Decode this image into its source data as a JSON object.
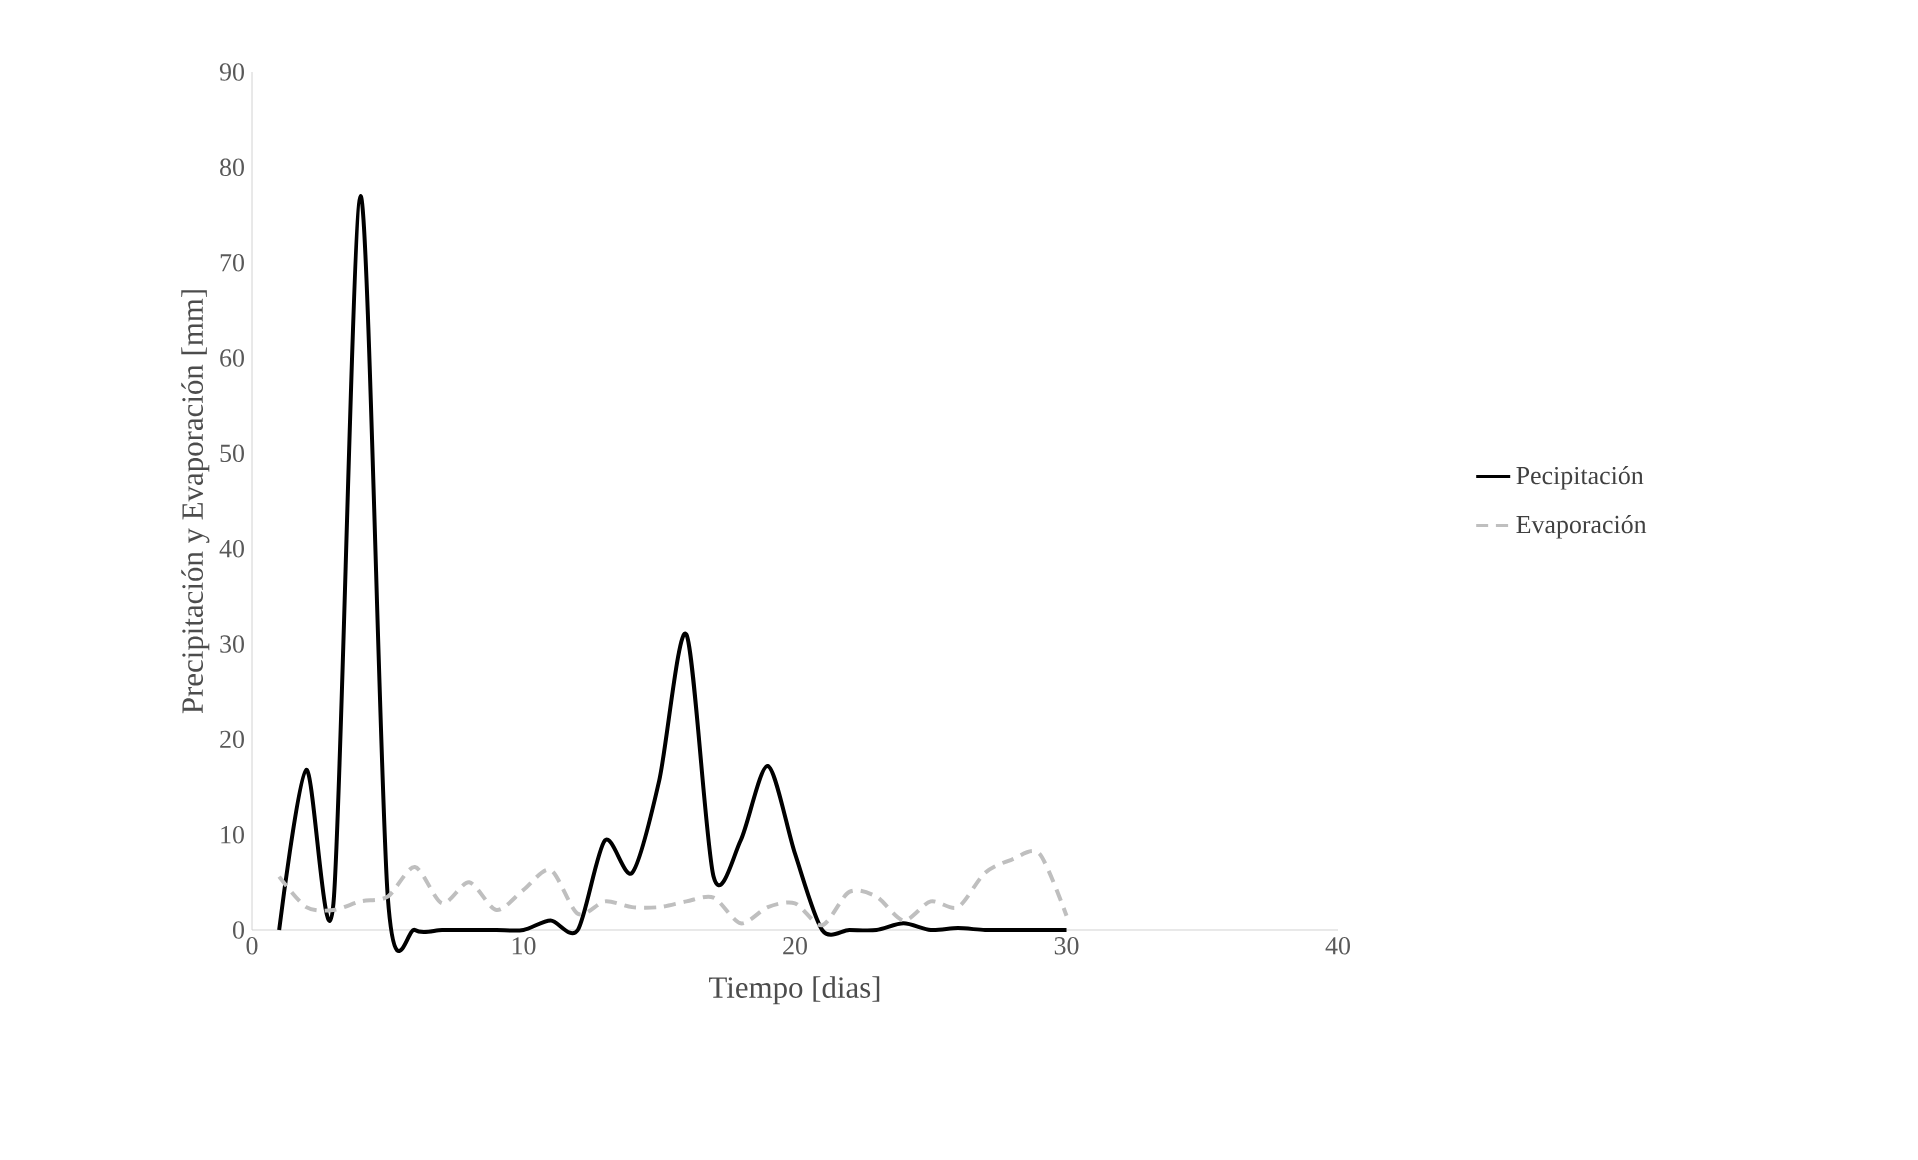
{
  "chart_data": {
    "type": "line",
    "xlabel": "Tiempo [dias]",
    "ylabel": "Precipitación y Evaporación [mm]",
    "x": [
      1,
      2,
      3,
      4,
      5,
      6,
      7,
      8,
      9,
      10,
      11,
      12,
      13,
      14,
      15,
      16,
      17,
      18,
      19,
      20,
      21,
      22,
      23,
      24,
      25,
      26,
      27,
      28,
      29,
      30
    ],
    "series": [
      {
        "name": "Pecipitación",
        "color": "#000000",
        "line_style": "solid",
        "values": [
          0,
          16.8,
          2.8,
          77,
          3.5,
          0,
          0,
          0,
          0,
          0,
          1,
          0,
          9.4,
          6,
          15.7,
          31,
          5.6,
          9.4,
          17.2,
          8,
          0,
          0,
          0,
          0.7,
          0,
          0.2,
          0,
          0,
          0,
          0
        ]
      },
      {
        "name": "Evaporación",
        "color": "#bfbfbf",
        "line_style": "dashed",
        "values": [
          5.6,
          2.4,
          2.1,
          3,
          3.5,
          6.6,
          2.8,
          5,
          2.1,
          4.2,
          6.3,
          1.7,
          3,
          2.4,
          2.4,
          3,
          3.4,
          0.7,
          2.4,
          2.8,
          0.5,
          4,
          3.5,
          1,
          3,
          2.4,
          6,
          7.4,
          8,
          1.5
        ]
      }
    ],
    "xlim": [
      0,
      40
    ],
    "ylim": [
      0,
      90
    ],
    "xticks": [
      0,
      10,
      20,
      30,
      40
    ],
    "yticks": [
      0,
      10,
      20,
      30,
      40,
      50,
      60,
      70,
      80,
      90
    ],
    "grid": false,
    "legend": "right",
    "marker": "none"
  }
}
